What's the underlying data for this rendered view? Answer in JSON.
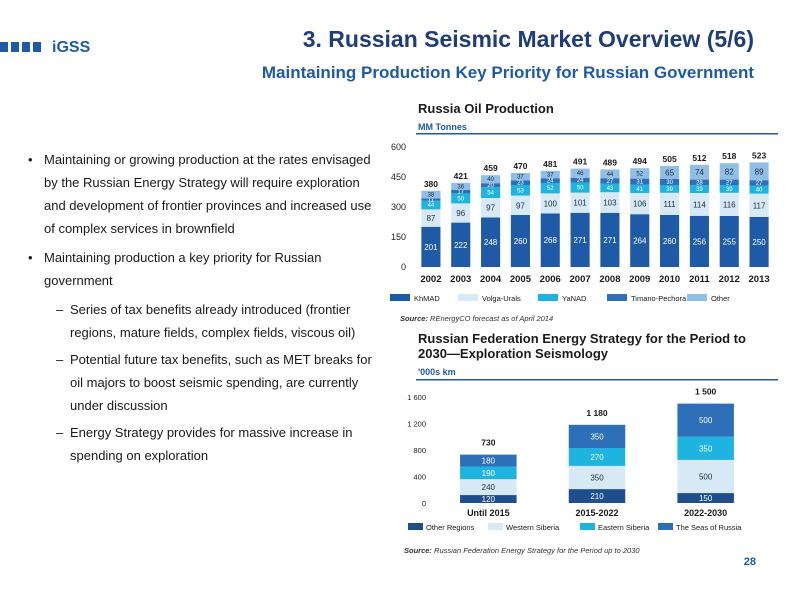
{
  "header": {
    "logo_text": "iGSS",
    "title": "3. Russian Seismic Market Overview (5/6)",
    "subtitle": "Maintaining Production Key Priority for Russian Government",
    "page_number": "28"
  },
  "bullets": [
    {
      "text": "Maintaining or growing production at the rates envisaged by the Russian Energy Strategy will require exploration and development of frontier provinces and increased use of complex services in brownfield"
    },
    {
      "text": "Maintaining production a key priority for Russian government",
      "sub": [
        "Series of tax benefits already introduced (frontier regions, mature fields, complex fields, viscous oil)",
        "Potential future tax benefits, such as MET breaks for oil majors to boost seismic spending, are currently under discussion",
        "Energy Strategy provides for massive increase in spending on exploration"
      ]
    }
  ],
  "chart_data": [
    {
      "type": "bar",
      "stacked": true,
      "title": "Russia Oil Production",
      "unit": "MM Tonnes",
      "categories": [
        "2002",
        "2003",
        "2004",
        "2005",
        "2006",
        "2007",
        "2008",
        "2009",
        "2010",
        "2011",
        "2012",
        "2013"
      ],
      "totals": [
        380,
        421,
        459,
        470,
        481,
        491,
        489,
        494,
        505,
        512,
        518,
        523
      ],
      "ylim": [
        0,
        600
      ],
      "yticks": [
        0,
        150,
        300,
        450,
        600
      ],
      "series": [
        {
          "name": "KhMAD",
          "color": "#1f5aa6",
          "values": [
            201,
            222,
            248,
            260,
            268,
            271,
            271,
            264,
            260,
            256,
            255,
            250
          ]
        },
        {
          "name": "Volga-Urals",
          "color": "#d6e9f5",
          "values": [
            87,
            96,
            97,
            97,
            100,
            101,
            103,
            106,
            111,
            114,
            116,
            117
          ]
        },
        {
          "name": "YaNAD",
          "color": "#1fb3e0",
          "values": [
            44,
            50,
            54,
            53,
            52,
            50,
            43,
            41,
            39,
            39,
            39,
            40
          ]
        },
        {
          "name": "Timano-Pechora",
          "color": "#2d6fb8",
          "values": [
            11,
            17,
            20,
            23,
            24,
            24,
            27,
            31,
            30,
            28,
            27,
            27
          ]
        },
        {
          "name": "Other",
          "color": "#8fbfe6",
          "values": [
            38,
            36,
            40,
            37,
            37,
            46,
            44,
            52,
            65,
            74,
            82,
            89
          ]
        }
      ],
      "legend": "bottom",
      "source_label": "Source:",
      "source": "REnergyCO forecast as of April 2014"
    },
    {
      "type": "bar",
      "stacked": true,
      "title": "Russian Federation Energy Strategy for the Period to 2030—Exploration Seismology",
      "unit": "'000s km",
      "categories": [
        "Until 2015",
        "2015-2022",
        "2022-2030"
      ],
      "totals": [
        "730",
        "1 180",
        "1 500"
      ],
      "ylim": [
        0,
        1600
      ],
      "yticks": [
        "0",
        "400",
        "800",
        "1 200",
        "1 600"
      ],
      "series": [
        {
          "name": "Other Regions",
          "color": "#1f4e8c",
          "values": [
            120,
            210,
            150
          ]
        },
        {
          "name": "Western Siberia",
          "color": "#d6e9f5",
          "values": [
            240,
            350,
            500
          ]
        },
        {
          "name": "Eastern Siberia",
          "color": "#1fb3e0",
          "values": [
            190,
            270,
            350
          ]
        },
        {
          "name": "The Seas of Russia",
          "color": "#2d6fb8",
          "values": [
            180,
            350,
            500
          ]
        }
      ],
      "legend": "bottom",
      "source_label": "Source:",
      "source": "Russian Federation Energy Strategy for the Period up to 2030"
    }
  ]
}
